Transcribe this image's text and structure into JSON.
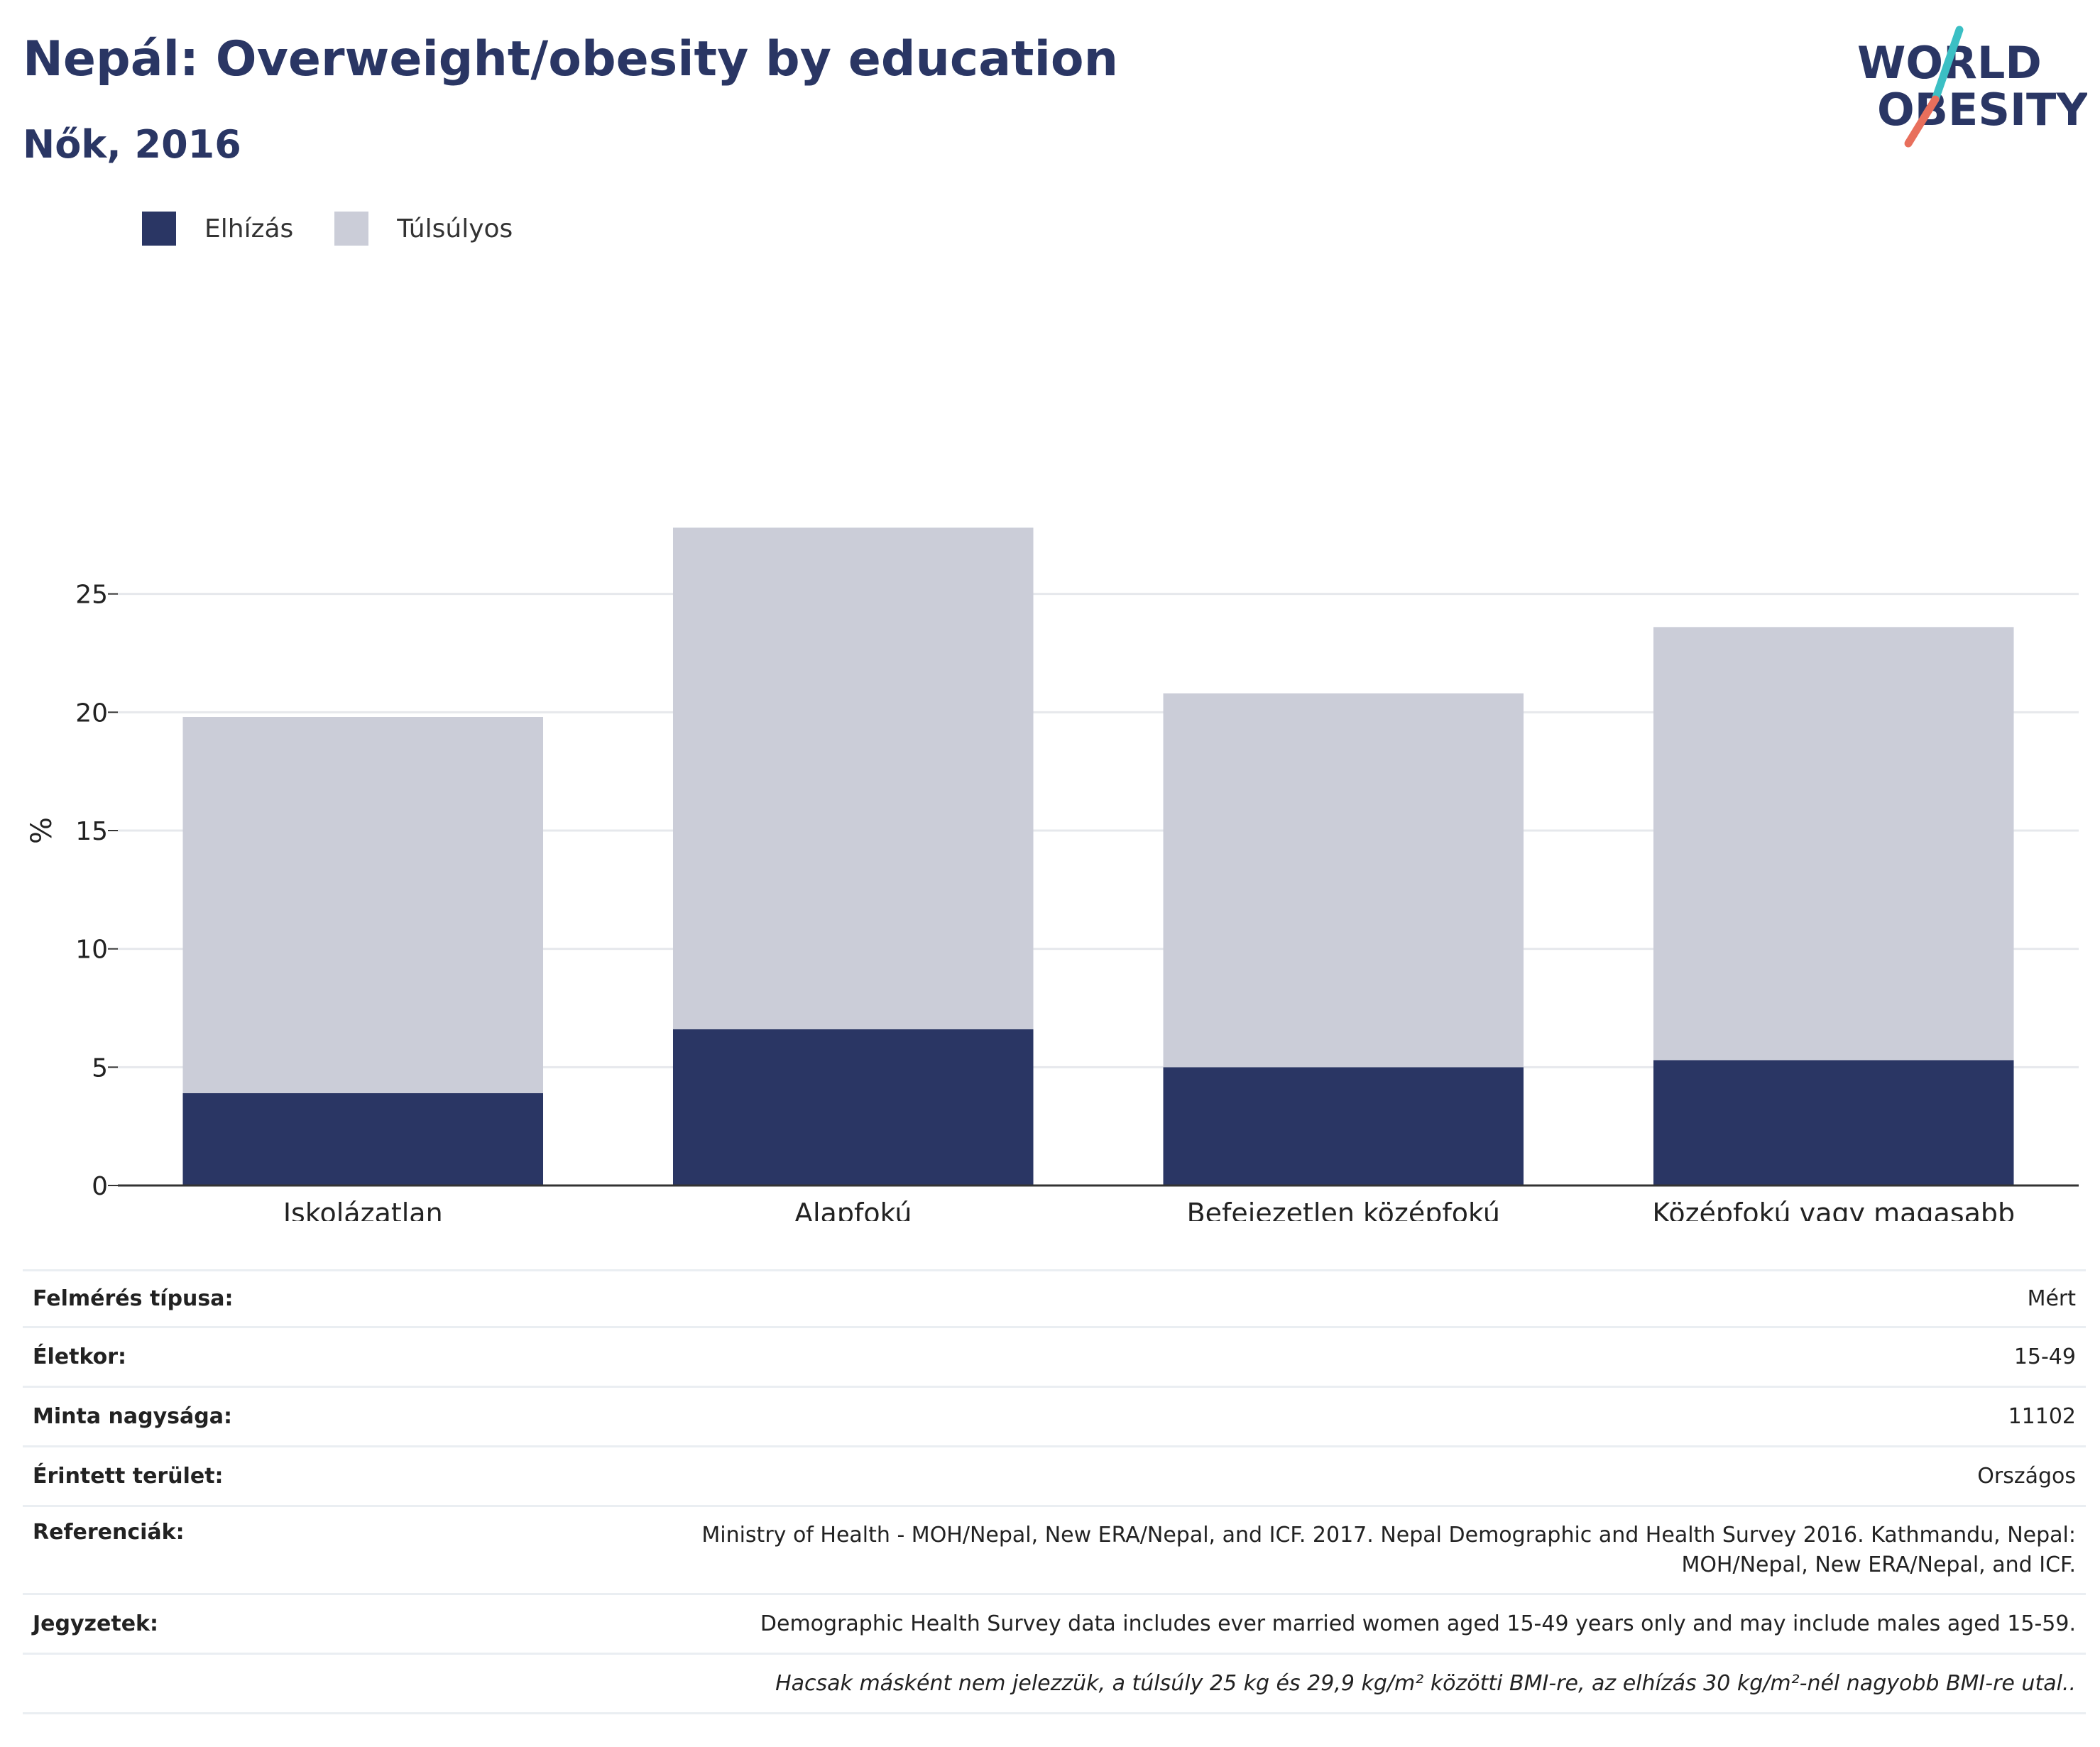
{
  "header": {
    "title": "Nepál: Overweight/obesity by education",
    "subtitle": "Nők, 2016"
  },
  "logo": {
    "line1": "WORLD",
    "line2": "OBESITY"
  },
  "colors": {
    "obesity": "#2a3664",
    "overweight": "#cbcdd8",
    "title": "#2a3664",
    "logo_teal": "#3bbfc4",
    "logo_coral": "#e86f5c"
  },
  "chart_data": {
    "type": "bar",
    "stacked": true,
    "categories": [
      "Iskolázatlan",
      "Alapfokú",
      "Befejezetlen középfokú",
      "Középfokú vagy magasabb"
    ],
    "series": [
      {
        "name": "Elhízás",
        "values": [
          3.9,
          6.6,
          5.0,
          5.3
        ]
      },
      {
        "name": "Túlsúlyos",
        "values": [
          15.9,
          21.2,
          15.8,
          18.3
        ]
      }
    ],
    "totals": [
      19.8,
      27.8,
      20.8,
      23.6
    ],
    "ylabel": "%",
    "yticks": [
      0,
      5,
      10,
      15,
      20,
      25
    ],
    "ylim": [
      0,
      30
    ],
    "grid": true,
    "legend_position": "top-left"
  },
  "info": [
    {
      "key": "Felmérés típusa:",
      "value": "Mért"
    },
    {
      "key": "Életkor:",
      "value": "15-49"
    },
    {
      "key": "Minta nagysága:",
      "value": "11102"
    },
    {
      "key": "Érintett terület:",
      "value": "Országos"
    },
    {
      "key": "Referenciák:",
      "value": "Ministry of Health - MOH/Nepal, New ERA/Nepal, and ICF. 2017. Nepal Demographic and Health Survey 2016. Kathmandu, Nepal:",
      "value2": "MOH/Nepal, New ERA/Nepal, and ICF."
    },
    {
      "key": "Jegyzetek:",
      "value": "Demographic Health Survey data includes ever married women aged 15-49 years only and may include males aged 15-59."
    }
  ],
  "footnote": "Hacsak másként nem jelezzük, a túlsúly 25 kg és 29,9 kg/m² közötti BMI-re, az elhízás 30 kg/m²-nél nagyobb BMI-re utal.."
}
